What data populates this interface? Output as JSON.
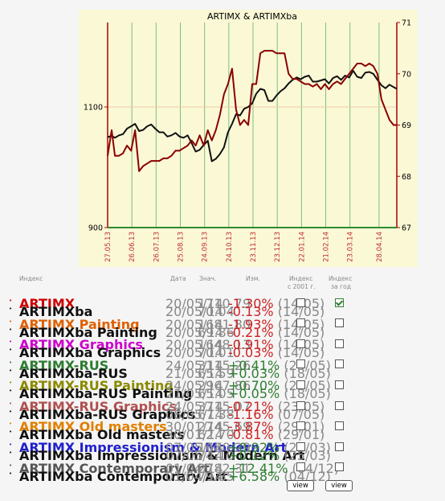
{
  "chart_data": {
    "type": "line",
    "title": "ARTIMX & ARTIMXba",
    "x_ticks": [
      "27.05.13",
      "26.06.13",
      "26.07.13",
      "25.08.13",
      "24.09.13",
      "24.10.13",
      "23.11.13",
      "23.12.13",
      "22.01.14",
      "21.02.14",
      "23.03.14",
      "28.04.14"
    ],
    "y_left": {
      "ticks": [
        "900",
        "1100"
      ],
      "ylim": [
        900,
        1240
      ]
    },
    "y_right": {
      "ticks": [
        "67",
        "68",
        "69",
        "70",
        "71"
      ],
      "ylim": [
        67,
        71
      ]
    },
    "grid": "vertical",
    "series": [
      {
        "name": "ARTIMX",
        "axis": "left",
        "color": "#111111",
        "x": [
          "2013-05-27",
          "2013-06-01",
          "2013-06-05",
          "2013-06-10",
          "2013-06-15",
          "2013-06-20",
          "2013-06-25",
          "2013-06-30",
          "2013-07-05",
          "2013-07-10",
          "2013-07-15",
          "2013-07-20",
          "2013-07-25",
          "2013-07-30",
          "2013-08-04",
          "2013-08-09",
          "2013-08-14",
          "2013-08-19",
          "2013-08-24",
          "2013-08-29",
          "2013-09-03",
          "2013-09-08",
          "2013-09-13",
          "2013-09-18",
          "2013-09-23",
          "2013-09-28",
          "2013-10-03",
          "2013-10-08",
          "2013-10-13",
          "2013-10-18",
          "2013-10-23",
          "2013-10-28",
          "2013-11-02",
          "2013-11-07",
          "2013-11-12",
          "2013-11-17",
          "2013-11-22",
          "2013-11-27",
          "2013-12-02",
          "2013-12-07",
          "2013-12-12",
          "2013-12-17",
          "2013-12-22",
          "2013-12-27",
          "2014-01-01",
          "2014-01-06",
          "2014-01-11",
          "2014-01-16",
          "2014-01-21",
          "2014-01-26",
          "2014-01-31",
          "2014-02-05",
          "2014-02-10",
          "2014-02-15",
          "2014-02-20",
          "2014-02-25",
          "2014-03-02",
          "2014-03-07",
          "2014-03-12",
          "2014-03-17",
          "2014-03-22",
          "2014-03-27",
          "2014-04-01",
          "2014-04-06",
          "2014-04-11",
          "2014-04-16",
          "2014-04-21",
          "2014-04-26",
          "2014-05-01",
          "2014-05-06",
          "2014-05-11",
          "2014-05-16",
          "2014-05-20"
        ],
        "values": [
          1050,
          1052,
          1049,
          1053,
          1055,
          1064,
          1068,
          1072,
          1060,
          1062,
          1068,
          1071,
          1064,
          1058,
          1058,
          1051,
          1053,
          1057,
          1051,
          1049,
          1053,
          1040,
          1026,
          1029,
          1037,
          1044,
          1010,
          1014,
          1022,
          1033,
          1058,
          1072,
          1088,
          1086,
          1097,
          1100,
          1106,
          1122,
          1130,
          1128,
          1110,
          1110,
          1119,
          1126,
          1131,
          1139,
          1145,
          1149,
          1146,
          1150,
          1152,
          1142,
          1142,
          1144,
          1146,
          1139,
          1148,
          1151,
          1145,
          1152,
          1149,
          1160,
          1150,
          1148,
          1157,
          1158,
          1155,
          1145,
          1136,
          1131,
          1137,
          1133,
          1130
        ]
      },
      {
        "name": "ARTIMXba",
        "axis": "right",
        "color": "#8b0000",
        "x": [
          "2013-05-27",
          "2013-06-01",
          "2013-06-05",
          "2013-06-10",
          "2013-06-15",
          "2013-06-20",
          "2013-06-25",
          "2013-06-30",
          "2013-07-05",
          "2013-07-10",
          "2013-07-15",
          "2013-07-20",
          "2013-07-25",
          "2013-07-30",
          "2013-08-04",
          "2013-08-09",
          "2013-08-14",
          "2013-08-19",
          "2013-08-24",
          "2013-08-29",
          "2013-09-03",
          "2013-09-08",
          "2013-09-13",
          "2013-09-18",
          "2013-09-23",
          "2013-09-28",
          "2013-10-03",
          "2013-10-08",
          "2013-10-13",
          "2013-10-18",
          "2013-10-23",
          "2013-10-28",
          "2013-11-02",
          "2013-11-07",
          "2013-11-12",
          "2013-11-17",
          "2013-11-22",
          "2013-11-27",
          "2013-12-02",
          "2013-12-07",
          "2013-12-12",
          "2013-12-17",
          "2013-12-22",
          "2013-12-27",
          "2014-01-01",
          "2014-01-06",
          "2014-01-11",
          "2014-01-16",
          "2014-01-21",
          "2014-01-26",
          "2014-01-31",
          "2014-02-05",
          "2014-02-10",
          "2014-02-15",
          "2014-02-20",
          "2014-02-25",
          "2014-03-02",
          "2014-03-07",
          "2014-03-12",
          "2014-03-17",
          "2014-03-22",
          "2014-03-27",
          "2014-04-01",
          "2014-04-06",
          "2014-04-11",
          "2014-04-16",
          "2014-04-21",
          "2014-04-26",
          "2014-05-01",
          "2014-05-06",
          "2014-05-11",
          "2014-05-16",
          "2014-05-20"
        ],
        "values": [
          68.4,
          68.9,
          68.4,
          68.4,
          68.45,
          68.6,
          68.5,
          68.9,
          68.1,
          68.2,
          68.25,
          68.3,
          68.3,
          68.3,
          68.35,
          68.35,
          68.4,
          68.5,
          68.5,
          68.55,
          68.6,
          68.7,
          68.6,
          68.8,
          68.6,
          68.9,
          68.7,
          68.9,
          69.2,
          69.6,
          69.8,
          70.1,
          69.3,
          69.0,
          69.1,
          69.0,
          69.8,
          69.8,
          70.4,
          70.45,
          70.45,
          70.45,
          70.4,
          70.4,
          70.4,
          70.0,
          69.9,
          69.9,
          69.85,
          69.8,
          69.8,
          69.75,
          69.8,
          69.7,
          69.8,
          69.7,
          69.8,
          69.85,
          69.8,
          69.9,
          70.0,
          70.1,
          70.2,
          70.2,
          70.15,
          70.2,
          70.15,
          70.0,
          69.5,
          69.3,
          69.1,
          69.0,
          69.0
        ]
      }
    ]
  },
  "table": {
    "headers": {
      "index": "Индекс",
      "date": "Дата",
      "value": "Знач.",
      "change": "Изм.",
      "since2001_1": "Индекс",
      "since2001_2": "с 2001 г.",
      "year_1": "Индекс",
      "year_2": "за год"
    },
    "rows": [
      {
        "name": "ARTIMX",
        "color": "#cc0000",
        "date": "20/05/14",
        "value": "1710.79",
        "pct": "-1.30%",
        "pct_date": "(14/05)",
        "positive": false,
        "c1": false,
        "c2": true
      },
      {
        "name": "ARTIMXba",
        "color": "#111111",
        "date": "20/05/14",
        "value": "70.04",
        "pct": "-0.13%",
        "pct_date": "(14/05)",
        "positive": false,
        "c1": null,
        "c2": null
      },
      {
        "name": "ARTIMX Painting",
        "color": "#e06000",
        "date": "20/05/14",
        "value": "1681.80",
        "pct": "-1.93%",
        "pct_date": "(14/05)",
        "positive": false,
        "c1": false,
        "c2": false
      },
      {
        "name": "ARTIMXba Painting",
        "color": "#111111",
        "date": "20/05/14",
        "value": "69.86",
        "pct": "-0.21%",
        "pct_date": "(14/05)",
        "positive": false,
        "c1": null,
        "c2": null
      },
      {
        "name": "ARTIMX Graphics",
        "color": "#cc00cc",
        "date": "20/05/14",
        "value": "1648.13",
        "pct": "-0.91%",
        "pct_date": "(14/05)",
        "positive": false,
        "c1": false,
        "c2": false
      },
      {
        "name": "ARTIMXba Graphics",
        "color": "#111111",
        "date": "20/05/14",
        "value": "70.01",
        "pct": "-0.03%",
        "pct_date": "(14/05)",
        "positive": false,
        "c1": null,
        "c2": null
      },
      {
        "name": "ARTIMX-RUS",
        "color": "#2e7d32",
        "date": "24/05/14",
        "value": "3115.26",
        "pct": "+0.41%",
        "pct_date": "(23/05)",
        "positive": true,
        "c1": false,
        "c2": false
      },
      {
        "name": "ARTIMXba-RUS",
        "color": "#111111",
        "date": "21/05/14",
        "value": "65.59",
        "pct": "+0.03%",
        "pct_date": "(18/05)",
        "positive": true,
        "c1": null,
        "c2": null
      },
      {
        "name": "ARTIMX-RUS Painting",
        "color": "#8a8a00",
        "date": "24/05/14",
        "value": "2967.86",
        "pct": "+0.70%",
        "pct_date": "(23/05)",
        "positive": true,
        "c1": false,
        "c2": false
      },
      {
        "name": "ARTIMXba-RUS Painting",
        "color": "#111111",
        "date": "21/05/14",
        "value": "65.05",
        "pct": "+0.05%",
        "pct_date": "(18/05)",
        "positive": true,
        "c1": null,
        "c2": null
      },
      {
        "name": "ARTIMX-RUS Graphics",
        "color": "#b05050",
        "date": "24/05/14",
        "value": "3715.07",
        "pct": "-0.21%",
        "pct_date": "(23/05)",
        "positive": false,
        "c1": false,
        "c2": false
      },
      {
        "name": "ARTIMXba-RUS Graphics",
        "color": "#111111",
        "date": "08/05/14",
        "value": "67.38",
        "pct": "-1.16%",
        "pct_date": "(07/05)",
        "positive": false,
        "c1": null,
        "c2": null
      },
      {
        "name": "ARTIMX Old masters",
        "color": "#e08000",
        "date": "30/01/14",
        "value": "2745.69",
        "pct": "-3.87%",
        "pct_date": "(29/01)",
        "positive": false,
        "c1": false,
        "c2": false
      },
      {
        "name": "ARTIMXba Old masters",
        "color": "#111111",
        "date": "30/01/14",
        "value": "62.70",
        "pct": "-0.81%",
        "pct_date": "(29/01)",
        "positive": false,
        "c1": null,
        "c2": null
      },
      {
        "name": "ARTIMX Impressionism & Modern Art",
        "color": "#2020cc",
        "date": "07/05/14",
        "value": "1680.29",
        "pct": "+0.92%",
        "pct_date": "(25/03)",
        "positive": true,
        "c1": false,
        "c2": false
      },
      {
        "name": "ARTIMXba Impressionism & Modern Art",
        "color": "#111111",
        "date": "07/05/14",
        "value": "74.10",
        "pct": "+0.12%",
        "pct_date": "(25/03)",
        "positive": true,
        "c1": null,
        "c2": null
      },
      {
        "name": "ARTIMX Contemporary Art",
        "color": "#555555",
        "date": "01/04/14",
        "value": "2782.31",
        "pct": "+12.41%",
        "pct_date": "(04/12)",
        "positive": true,
        "c1": false,
        "c2": false
      },
      {
        "name": "ARTIMXba Contemporary Art",
        "color": "#111111",
        "date": "01/04/14",
        "value": "79.85",
        "pct": "+6.58%",
        "pct_date": "(04/12)",
        "positive": true,
        "c1": null,
        "c2": null
      }
    ],
    "buttons": {
      "view1": "view",
      "view2": "view"
    }
  }
}
